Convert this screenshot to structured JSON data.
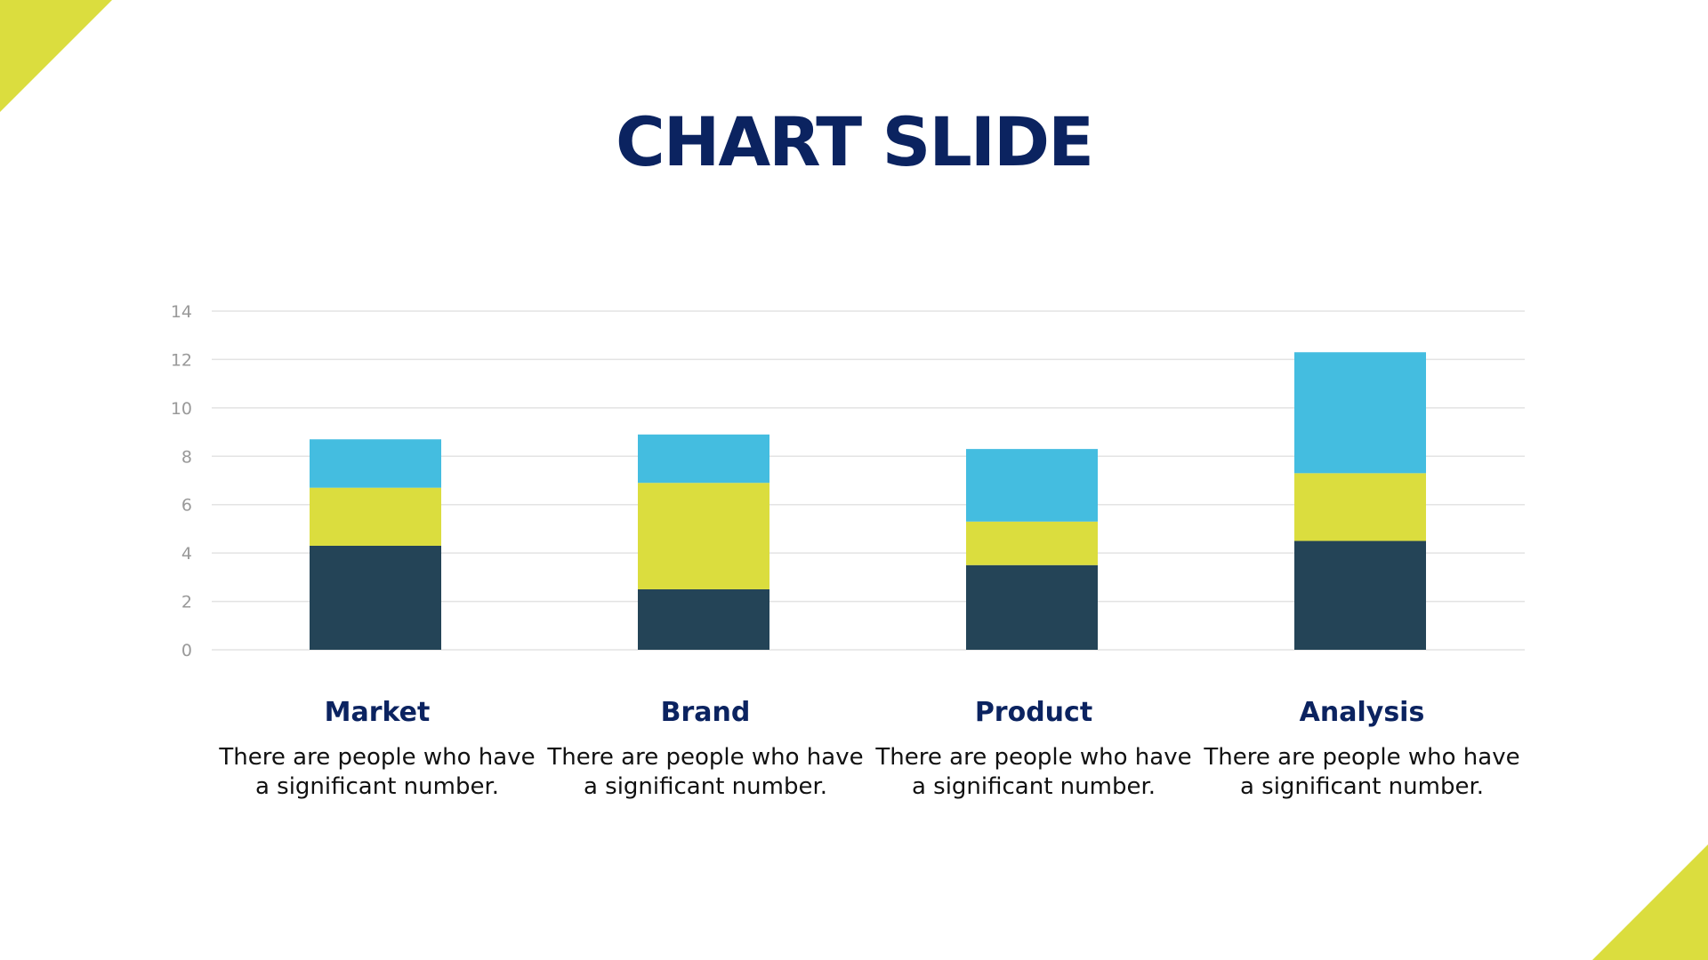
{
  "title": "CHART SLIDE",
  "colors": {
    "accent": "#dbdd3e",
    "title": "#0b2360",
    "series_dark": "#244457",
    "series_yellow": "#dbdd3e",
    "series_blue": "#44bde0",
    "grid": "#e3e3e3",
    "tick": "#999999"
  },
  "chart_data": {
    "type": "bar",
    "stacked": true,
    "categories": [
      "Market",
      "Brand",
      "Product",
      "Analysis"
    ],
    "series": [
      {
        "values": [
          4.3,
          2.5,
          3.5,
          4.5
        ],
        "color": "#244457"
      },
      {
        "values": [
          2.4,
          4.4,
          1.8,
          2.8
        ],
        "color": "#dbdd3e"
      },
      {
        "values": [
          2.0,
          2.0,
          3.0,
          5.0
        ],
        "color": "#44bde0"
      }
    ],
    "ylim": [
      0,
      14
    ],
    "yticks": [
      0,
      2,
      4,
      6,
      8,
      10,
      12,
      14
    ],
    "grid": true,
    "legend": "none",
    "xlabel": "",
    "ylabel": ""
  },
  "descriptions": [
    {
      "label": "Market",
      "text": "There are people who have a significant number."
    },
    {
      "label": "Brand",
      "text": "There are people who have a significant number."
    },
    {
      "label": "Product",
      "text": "There are people who have a significant number."
    },
    {
      "label": "Analysis",
      "text": "There are people who have a significant number."
    }
  ]
}
